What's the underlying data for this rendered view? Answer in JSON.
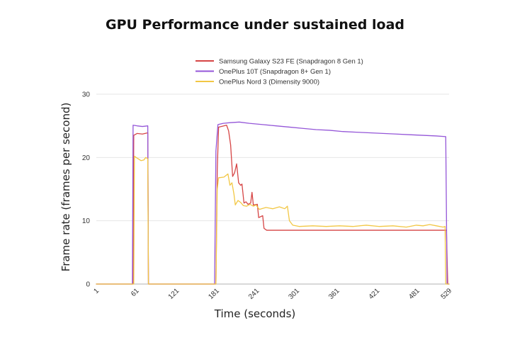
{
  "chart_data": {
    "type": "line",
    "title": "GPU Performance under sustained load",
    "xlabel": "Time (seconds)",
    "ylabel": "Frame rate (frames per second)",
    "xlim": [
      1,
      529
    ],
    "ylim": [
      0,
      30
    ],
    "xticks": [
      1,
      61,
      121,
      181,
      241,
      301,
      361,
      421,
      481,
      529
    ],
    "yticks": [
      0,
      10,
      20,
      30
    ],
    "grid": true,
    "legend_position": "top",
    "series": [
      {
        "name": "Samsung Galaxy S23 FE (Snapdragon 8 Gen 1)",
        "color": "#d64545",
        "points": [
          [
            1,
            0
          ],
          [
            56,
            0
          ],
          [
            57,
            23.5
          ],
          [
            62,
            23.8
          ],
          [
            70,
            23.7
          ],
          [
            78,
            23.9
          ],
          [
            79,
            0
          ],
          [
            180,
            0
          ],
          [
            182,
            18
          ],
          [
            184,
            24.8
          ],
          [
            196,
            25.1
          ],
          [
            199,
            24.2
          ],
          [
            202,
            22
          ],
          [
            205,
            17
          ],
          [
            208,
            17.6
          ],
          [
            211,
            19
          ],
          [
            214,
            16
          ],
          [
            217,
            15.6
          ],
          [
            219,
            15.8
          ],
          [
            222,
            12.8
          ],
          [
            225,
            13
          ],
          [
            228,
            12.6
          ],
          [
            232,
            12.8
          ],
          [
            234,
            14.5
          ],
          [
            236,
            12.5
          ],
          [
            242,
            12.6
          ],
          [
            244,
            10.5
          ],
          [
            250,
            10.8
          ],
          [
            252,
            8.8
          ],
          [
            256,
            8.5
          ],
          [
            300,
            8.5
          ],
          [
            400,
            8.5
          ],
          [
            500,
            8.5
          ],
          [
            525,
            8.5
          ],
          [
            527,
            0
          ],
          [
            529,
            0
          ]
        ]
      },
      {
        "name": "OnePlus 10T (Snapdragon 8+ Gen 1)",
        "color": "#9456d8",
        "points": [
          [
            1,
            0
          ],
          [
            55,
            0
          ],
          [
            56,
            25.1
          ],
          [
            62,
            25
          ],
          [
            70,
            24.9
          ],
          [
            78,
            25
          ],
          [
            79,
            0
          ],
          [
            178,
            0
          ],
          [
            180,
            21
          ],
          [
            183,
            25.2
          ],
          [
            191,
            25.4
          ],
          [
            201,
            25.5
          ],
          [
            215,
            25.6
          ],
          [
            230,
            25.4
          ],
          [
            250,
            25.2
          ],
          [
            270,
            25
          ],
          [
            290,
            24.8
          ],
          [
            310,
            24.6
          ],
          [
            330,
            24.4
          ],
          [
            350,
            24.3
          ],
          [
            370,
            24.1
          ],
          [
            390,
            24
          ],
          [
            410,
            23.9
          ],
          [
            430,
            23.8
          ],
          [
            450,
            23.7
          ],
          [
            470,
            23.6
          ],
          [
            490,
            23.5
          ],
          [
            510,
            23.4
          ],
          [
            524,
            23.3
          ],
          [
            526,
            0
          ],
          [
            529,
            0
          ]
        ]
      },
      {
        "name": "OnePlus Nord 3 (Dimensity 9000)",
        "color": "#f2c744",
        "points": [
          [
            1,
            0
          ],
          [
            57,
            0
          ],
          [
            58,
            20.2
          ],
          [
            62,
            19.9
          ],
          [
            68,
            19.5
          ],
          [
            72,
            19.6
          ],
          [
            75,
            20
          ],
          [
            78,
            19.8
          ],
          [
            79,
            0
          ],
          [
            180,
            0
          ],
          [
            182,
            15
          ],
          [
            184,
            16.8
          ],
          [
            192,
            16.9
          ],
          [
            198,
            17.4
          ],
          [
            201,
            15.6
          ],
          [
            204,
            16
          ],
          [
            207,
            14.2
          ],
          [
            209,
            12.5
          ],
          [
            213,
            13.2
          ],
          [
            217,
            12.9
          ],
          [
            221,
            12.4
          ],
          [
            226,
            12.3
          ],
          [
            231,
            12.6
          ],
          [
            236,
            12.3
          ],
          [
            240,
            12.5
          ],
          [
            245,
            11.8
          ],
          [
            255,
            12.1
          ],
          [
            265,
            11.9
          ],
          [
            275,
            12.2
          ],
          [
            283,
            11.9
          ],
          [
            287,
            12.3
          ],
          [
            290,
            10
          ],
          [
            295,
            9.3
          ],
          [
            305,
            9.1
          ],
          [
            325,
            9.2
          ],
          [
            345,
            9.1
          ],
          [
            365,
            9.2
          ],
          [
            385,
            9.1
          ],
          [
            405,
            9.3
          ],
          [
            425,
            9.1
          ],
          [
            445,
            9.2
          ],
          [
            465,
            9
          ],
          [
            480,
            9.3
          ],
          [
            490,
            9.2
          ],
          [
            500,
            9.4
          ],
          [
            510,
            9.2
          ],
          [
            520,
            9
          ],
          [
            523,
            9.1
          ],
          [
            524,
            0
          ],
          [
            529,
            0
          ]
        ]
      }
    ]
  }
}
